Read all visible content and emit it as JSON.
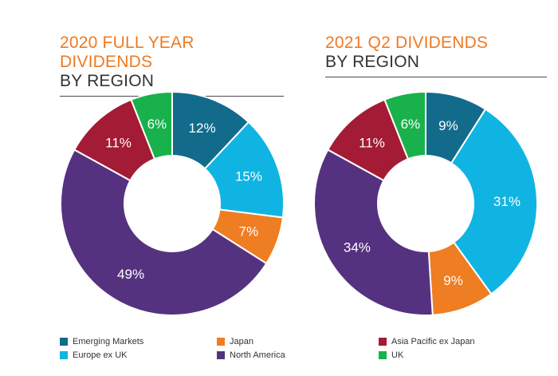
{
  "colors": {
    "emerging_markets": "#136b8c",
    "europe_ex_uk": "#10b4e2",
    "japan": "#ef7d22",
    "north_america": "#553280",
    "asia_pacific_ex_japan": "#a31b34",
    "uk": "#19b14b"
  },
  "chart_data": [
    {
      "type": "pie",
      "title": "2020 FULL YEAR DIVIDENDS",
      "subtitle": "BY REGION",
      "slices": [
        {
          "label": "Emerging Markets",
          "value": 12,
          "display": "12%",
          "color": "#136b8c"
        },
        {
          "label": "Europe ex UK",
          "value": 15,
          "display": "15%",
          "color": "#10b4e2"
        },
        {
          "label": "Japan",
          "value": 7,
          "display": "7%",
          "color": "#ef7d22"
        },
        {
          "label": "North America",
          "value": 49,
          "display": "49%",
          "color": "#553280"
        },
        {
          "label": "Asia Pacific ex Japan",
          "value": 11,
          "display": "11%",
          "color": "#a31b34"
        },
        {
          "label": "UK",
          "value": 6,
          "display": "6%",
          "color": "#19b14b"
        }
      ]
    },
    {
      "type": "pie",
      "title": "2021 Q2 DIVIDENDS",
      "subtitle": "BY REGION",
      "slices": [
        {
          "label": "Emerging Markets",
          "value": 9,
          "display": "9%",
          "color": "#136b8c"
        },
        {
          "label": "Europe ex UK",
          "value": 31,
          "display": "31%",
          "color": "#10b4e2"
        },
        {
          "label": "Japan",
          "value": 9,
          "display": "9%",
          "color": "#ef7d22"
        },
        {
          "label": "North America",
          "value": 34,
          "display": "34%",
          "color": "#553280"
        },
        {
          "label": "Asia Pacific ex Japan",
          "value": 11,
          "display": "11%",
          "color": "#a31b34"
        },
        {
          "label": "UK",
          "value": 6,
          "display": "6%",
          "color": "#19b14b"
        }
      ]
    }
  ],
  "legend": [
    {
      "label": "Emerging Markets",
      "color": "#136b8c"
    },
    {
      "label": "Europe ex UK",
      "color": "#10b4e2"
    },
    {
      "label": "Japan",
      "color": "#ef7d22"
    },
    {
      "label": "North America",
      "color": "#553280"
    },
    {
      "label": "Asia Pacific ex Japan",
      "color": "#a31b34"
    },
    {
      "label": "UK",
      "color": "#19b14b"
    }
  ]
}
